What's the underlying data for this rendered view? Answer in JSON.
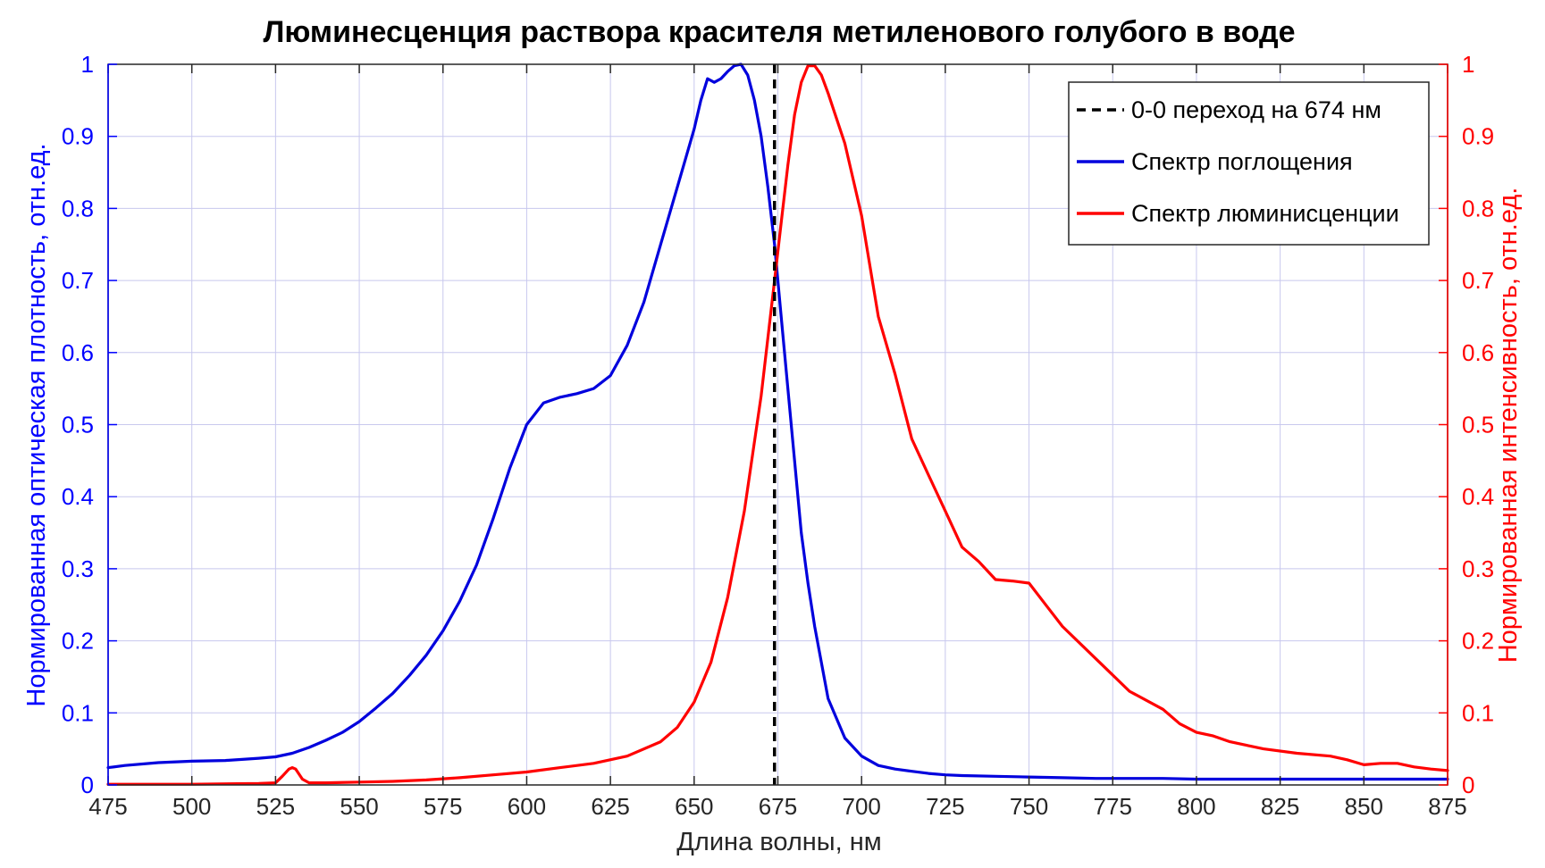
{
  "chart_data": {
    "type": "line",
    "title": "Люминесценция раствора красителя метиленового голубого в воде",
    "xlabel": "Длина волны, нм",
    "ylabel_left": "Нормированная оптическая плотность, отн.ед.",
    "ylabel_right": "Нормированная интенсивность, отн.ед.",
    "xlim": [
      475,
      875
    ],
    "ylim": [
      0,
      1
    ],
    "xticks": [
      "475",
      "500",
      "525",
      "550",
      "575",
      "600",
      "625",
      "650",
      "675",
      "700",
      "725",
      "750",
      "775",
      "800",
      "825",
      "850",
      "875"
    ],
    "yticks": [
      "0",
      "0.1",
      "0.2",
      "0.3",
      "0.4",
      "0.5",
      "0.6",
      "0.7",
      "0.8",
      "0.9",
      "1"
    ],
    "grid": true,
    "legend_position": "top-right",
    "colors": {
      "left_axis": "#0000ff",
      "right_axis": "#ff0000",
      "absorption": "#0000dd",
      "luminescence": "#ff0000",
      "transition": "#000000",
      "grid": "#c8c8ee"
    },
    "vline": {
      "x": 674,
      "name": "0-0 переход на 674 нм"
    },
    "series": [
      {
        "name": "Спектр поглощения",
        "axis": "left",
        "x": [
          475,
          480,
          490,
          500,
          510,
          520,
          525,
          530,
          535,
          540,
          545,
          550,
          555,
          560,
          565,
          570,
          575,
          580,
          585,
          590,
          595,
          600,
          605,
          610,
          615,
          620,
          625,
          630,
          635,
          640,
          645,
          650,
          652,
          654,
          656,
          658,
          660,
          662,
          664,
          666,
          668,
          670,
          672,
          674,
          676,
          678,
          680,
          682,
          684,
          686,
          688,
          690,
          695,
          700,
          705,
          710,
          715,
          720,
          725,
          730,
          740,
          750,
          760,
          770,
          780,
          790,
          800,
          810,
          820,
          830,
          840,
          850,
          860,
          870,
          875
        ],
        "values": [
          0.024,
          0.027,
          0.031,
          0.033,
          0.034,
          0.037,
          0.039,
          0.044,
          0.052,
          0.062,
          0.073,
          0.088,
          0.107,
          0.127,
          0.152,
          0.18,
          0.214,
          0.255,
          0.305,
          0.37,
          0.44,
          0.5,
          0.53,
          0.538,
          0.543,
          0.55,
          0.568,
          0.61,
          0.67,
          0.75,
          0.83,
          0.91,
          0.95,
          0.98,
          0.975,
          0.98,
          0.99,
          0.998,
          1.0,
          0.985,
          0.95,
          0.9,
          0.83,
          0.75,
          0.65,
          0.55,
          0.45,
          0.35,
          0.28,
          0.22,
          0.17,
          0.12,
          0.065,
          0.04,
          0.027,
          0.022,
          0.019,
          0.016,
          0.014,
          0.013,
          0.012,
          0.011,
          0.01,
          0.009,
          0.009,
          0.009,
          0.008,
          0.008,
          0.008,
          0.008,
          0.008,
          0.008,
          0.008,
          0.008,
          0.008
        ]
      },
      {
        "name": "Спектр люминисценции",
        "axis": "right",
        "x": [
          475,
          500,
          520,
          525,
          527,
          529,
          530,
          531,
          533,
          535,
          540,
          550,
          560,
          570,
          580,
          590,
          600,
          610,
          620,
          630,
          640,
          645,
          650,
          655,
          660,
          665,
          670,
          672,
          674,
          676,
          678,
          680,
          682,
          684,
          686,
          688,
          690,
          695,
          700,
          705,
          710,
          715,
          720,
          725,
          730,
          735,
          740,
          745,
          750,
          755,
          760,
          770,
          780,
          790,
          795,
          800,
          805,
          810,
          815,
          820,
          830,
          840,
          845,
          850,
          855,
          860,
          865,
          870,
          875
        ],
        "values": [
          0.001,
          0.001,
          0.002,
          0.003,
          0.012,
          0.022,
          0.024,
          0.022,
          0.008,
          0.003,
          0.003,
          0.004,
          0.005,
          0.007,
          0.01,
          0.014,
          0.018,
          0.024,
          0.03,
          0.04,
          0.06,
          0.08,
          0.115,
          0.17,
          0.26,
          0.38,
          0.54,
          0.62,
          0.7,
          0.78,
          0.86,
          0.93,
          0.975,
          0.998,
          0.998,
          0.985,
          0.96,
          0.89,
          0.79,
          0.65,
          0.57,
          0.48,
          0.43,
          0.38,
          0.33,
          0.31,
          0.285,
          0.283,
          0.28,
          0.25,
          0.22,
          0.175,
          0.13,
          0.105,
          0.085,
          0.073,
          0.068,
          0.06,
          0.055,
          0.05,
          0.044,
          0.04,
          0.035,
          0.028,
          0.03,
          0.03,
          0.025,
          0.022,
          0.02
        ]
      }
    ]
  }
}
